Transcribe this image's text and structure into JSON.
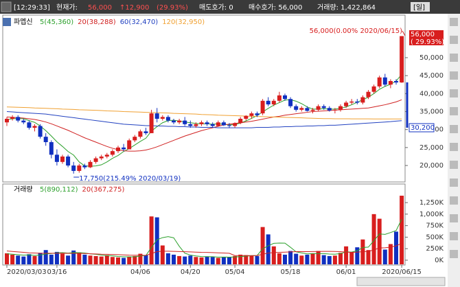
{
  "header": {
    "time": "[12:29:33]",
    "price_label": "현재가:",
    "price": "56,000",
    "change": "↑12,900",
    "change_pct": "(29.93%)",
    "ask": "매도호가: 0",
    "bid": "매수호가: 56,000",
    "volume": "거래량: 1,422,864",
    "period": "[일]"
  },
  "chart_data": [
    {
      "type": "candlestick",
      "title": "파멥신",
      "up_color": "#d81e1e",
      "down_color": "#1030c0",
      "ohlc": [
        [
          32000,
          33500,
          31000,
          33000
        ],
        [
          33000,
          34000,
          32500,
          33500
        ],
        [
          33500,
          34000,
          32000,
          32500
        ],
        [
          32500,
          33000,
          31500,
          32000
        ],
        [
          32000,
          32500,
          30000,
          30500
        ],
        [
          30500,
          31500,
          29500,
          31000
        ],
        [
          31000,
          31500,
          27500,
          28000
        ],
        [
          28000,
          29000,
          25500,
          26500
        ],
        [
          26500,
          27000,
          22000,
          23000
        ],
        [
          23000,
          24500,
          20000,
          21000
        ],
        [
          21000,
          23000,
          20500,
          22500
        ],
        [
          22500,
          23000,
          19500,
          20000
        ],
        [
          20000,
          21000,
          17750,
          18500
        ],
        [
          18500,
          20500,
          18000,
          20000
        ],
        [
          20000,
          20500,
          19000,
          19500
        ],
        [
          19500,
          21500,
          19300,
          21000
        ],
        [
          21000,
          22500,
          20500,
          22000
        ],
        [
          22000,
          23000,
          21500,
          22500
        ],
        [
          22500,
          23500,
          22000,
          23000
        ],
        [
          23000,
          24500,
          22500,
          24000
        ],
        [
          24000,
          25500,
          23500,
          25000
        ],
        [
          25000,
          26000,
          24000,
          24500
        ],
        [
          24500,
          27500,
          24500,
          27000
        ],
        [
          27000,
          28500,
          26500,
          28000
        ],
        [
          28000,
          30000,
          27500,
          29500
        ],
        [
          29500,
          30500,
          28500,
          29000
        ],
        [
          29000,
          35500,
          29000,
          34500
        ],
        [
          34500,
          36000,
          32000,
          33000
        ],
        [
          33000,
          34000,
          32500,
          33500
        ],
        [
          33500,
          34000,
          32000,
          32500
        ],
        [
          32500,
          33000,
          31500,
          32000
        ],
        [
          32000,
          33000,
          31500,
          32500
        ],
        [
          32500,
          33500,
          31000,
          31500
        ],
        [
          31500,
          32500,
          30500,
          31000
        ],
        [
          31000,
          32000,
          30500,
          31500
        ],
        [
          31500,
          32500,
          31000,
          32000
        ],
        [
          32000,
          32500,
          31000,
          31500
        ],
        [
          31500,
          32000,
          30500,
          31000
        ],
        [
          31000,
          32500,
          30800,
          32000
        ],
        [
          32000,
          32500,
          31000,
          31200
        ],
        [
          31200,
          31800,
          30500,
          31000
        ],
        [
          31000,
          32000,
          30500,
          31800
        ],
        [
          31800,
          33500,
          31500,
          33000
        ],
        [
          33000,
          34000,
          32500,
          33800
        ],
        [
          33800,
          35000,
          33000,
          34500
        ],
        [
          34500,
          35000,
          33500,
          34000
        ],
        [
          34500,
          38500,
          34000,
          38000
        ],
        [
          38000,
          39000,
          36500,
          37000
        ],
        [
          37000,
          38500,
          36500,
          38000
        ],
        [
          38000,
          40500,
          37500,
          39500
        ],
        [
          39500,
          40000,
          38000,
          38500
        ],
        [
          38500,
          39000,
          36000,
          36500
        ],
        [
          36500,
          37000,
          35000,
          35500
        ],
        [
          35500,
          36500,
          35000,
          36000
        ],
        [
          36000,
          36500,
          35000,
          35200
        ],
        [
          35200,
          36000,
          34500,
          35500
        ],
        [
          35500,
          37000,
          35000,
          36500
        ],
        [
          36500,
          37000,
          35500,
          36000
        ],
        [
          36000,
          36500,
          35000,
          35300
        ],
        [
          35300,
          36000,
          34500,
          35500
        ],
        [
          35500,
          37000,
          35000,
          36500
        ],
        [
          36500,
          38000,
          36000,
          37500
        ],
        [
          37500,
          38500,
          37000,
          37800
        ],
        [
          37800,
          38500,
          37000,
          37500
        ],
        [
          37500,
          39500,
          37000,
          39000
        ],
        [
          39000,
          41000,
          38500,
          40500
        ],
        [
          40500,
          42500,
          40000,
          42000
        ],
        [
          42000,
          45000,
          41500,
          44500
        ],
        [
          44500,
          45500,
          42000,
          42500
        ],
        [
          42500,
          44000,
          41500,
          43500
        ],
        [
          43500,
          44000,
          42500,
          43100
        ],
        [
          43100,
          56000,
          43000,
          56000
        ]
      ],
      "series": [
        {
          "name": "5(45,360)",
          "color": "#2ca02c",
          "values": [
            32800,
            33000,
            33100,
            33000,
            32500,
            32000,
            31000,
            29700,
            28200,
            26600,
            25300,
            23900,
            22900,
            21000,
            19900,
            19800,
            19900,
            20200,
            21000,
            22000,
            22800,
            23900,
            24700,
            25700,
            26700,
            27600,
            29600,
            30800,
            31900,
            32500,
            32600,
            32400,
            32100,
            31900,
            31700,
            31600,
            31600,
            31500,
            31600,
            31500,
            31300,
            31400,
            31800,
            32400,
            33100,
            33900,
            34900,
            35900,
            36800,
            37500,
            38200,
            38300,
            37900,
            37200,
            36300,
            35700,
            35700,
            35800,
            35700,
            35700,
            35900,
            36300,
            36900,
            37600,
            38300,
            39000,
            40000,
            41200,
            42000,
            42600,
            43500,
            45360
          ]
        },
        {
          "name": "20(38,288)",
          "color": "#d02020",
          "values": [
            33500,
            33400,
            33300,
            33200,
            33000,
            32800,
            32500,
            32100,
            31600,
            31000,
            30400,
            29800,
            29100,
            28400,
            27700,
            27100,
            26500,
            25900,
            25300,
            24800,
            24400,
            24100,
            24000,
            24000,
            24100,
            24300,
            24700,
            25200,
            25800,
            26400,
            27000,
            27600,
            28200,
            28700,
            29200,
            29700,
            30100,
            30500,
            30900,
            31300,
            31500,
            31700,
            31900,
            32100,
            32300,
            32600,
            32900,
            33200,
            33500,
            33700,
            34000,
            34200,
            34400,
            34600,
            34800,
            35000,
            35100,
            35200,
            35300,
            35400,
            35500,
            35600,
            35700,
            35800,
            35900,
            36000,
            36300,
            36600,
            36900,
            37300,
            37700,
            38288
          ]
        },
        {
          "name": "60(32,470)",
          "color": "#2040c0",
          "values": [
            35000,
            34900,
            34800,
            34700,
            34600,
            34500,
            34400,
            34300,
            34100,
            33900,
            33700,
            33500,
            33300,
            33100,
            32900,
            32700,
            32500,
            32300,
            32100,
            31900,
            31700,
            31500,
            31400,
            31300,
            31200,
            31100,
            31100,
            31000,
            31000,
            30900,
            30900,
            30800,
            30800,
            30700,
            30700,
            30600,
            30600,
            30600,
            30500,
            30500,
            30500,
            30500,
            30500,
            30500,
            30500,
            30600,
            30600,
            30600,
            30700,
            30700,
            30800,
            30800,
            30900,
            30900,
            31000,
            31000,
            31100,
            31100,
            31200,
            31200,
            31300,
            31400,
            31500,
            31600,
            31700,
            31800,
            31900,
            32000,
            32100,
            32200,
            32350,
            32470
          ]
        },
        {
          "name": "120(32,950)",
          "color": "#f0a030",
          "values": [
            36300,
            36250,
            36200,
            36150,
            36100,
            36000,
            35950,
            35900,
            35850,
            35800,
            35700,
            35650,
            35600,
            35500,
            35450,
            35400,
            35350,
            35300,
            35200,
            35150,
            35100,
            35000,
            34950,
            34900,
            34850,
            34800,
            34750,
            34700,
            34650,
            34600,
            34500,
            34450,
            34400,
            34350,
            34300,
            34200,
            34150,
            34100,
            34000,
            33950,
            33900,
            33850,
            33800,
            33750,
            33700,
            33650,
            33600,
            33550,
            33500,
            33450,
            33400,
            33350,
            33300,
            33250,
            33200,
            33150,
            33100,
            33050,
            33050,
            33000,
            33000,
            33000,
            32980,
            32980,
            32970,
            32970,
            32960,
            32960,
            32960,
            32950,
            32950,
            32950
          ]
        }
      ],
      "ylim": [
        16000,
        58400
      ],
      "yticks": [
        {
          "value": 20000,
          "label": "20,000"
        },
        {
          "value": 25000,
          "label": "25,000"
        },
        {
          "value": 30000,
          "label": "30,000"
        },
        {
          "value": 35000,
          "label": "35,000"
        },
        {
          "value": 40000,
          "label": "40,000"
        },
        {
          "value": 45000,
          "label": "45,000"
        },
        {
          "value": 50000,
          "label": "50,000"
        }
      ],
      "annotations": [
        "56,000(0.00% 2020/06/15)",
        "17,750(215.49% 2020/03/19)",
        "56,000",
        "( 29.93%)",
        "30,200"
      ]
    },
    {
      "type": "bar",
      "title": "거래량",
      "categories": [
        "2020/03/03",
        null,
        null,
        null,
        null,
        null,
        null,
        null,
        null,
        "03/16",
        null,
        null,
        null,
        null,
        null,
        null,
        null,
        null,
        null,
        null,
        null,
        null,
        null,
        null,
        "04/06",
        null,
        null,
        null,
        null,
        null,
        null,
        null,
        null,
        "04/20",
        null,
        null,
        null,
        null,
        null,
        null,
        null,
        "05/04",
        null,
        null,
        null,
        null,
        null,
        null,
        null,
        null,
        null,
        "05/18",
        null,
        null,
        null,
        null,
        null,
        null,
        null,
        null,
        null,
        "06/01",
        null,
        null,
        null,
        null,
        null,
        null,
        null,
        null,
        null,
        "2020/06/15"
      ],
      "values": [
        150000,
        120000,
        100000,
        80000,
        130000,
        90000,
        160000,
        220000,
        120000,
        180000,
        140000,
        100000,
        210000,
        170000,
        120000,
        100000,
        90000,
        80000,
        110000,
        70000,
        60000,
        50000,
        80000,
        90000,
        140000,
        110000,
        950000,
        930000,
        320000,
        150000,
        120000,
        90000,
        80000,
        100000,
        70000,
        60000,
        80000,
        70000,
        50000,
        60000,
        70000,
        90000,
        120000,
        110000,
        100000,
        90000,
        720000,
        560000,
        300000,
        150000,
        120000,
        200000,
        140000,
        100000,
        120000,
        150000,
        200000,
        110000,
        90000,
        100000,
        160000,
        300000,
        170000,
        280000,
        450000,
        220000,
        1000000,
        900000,
        230000,
        350000,
        620000,
        1400000
      ],
      "series": [
        {
          "name": "5(890,112)",
          "color": "#2ca02c",
          "values": [
            140000,
            130000,
            120000,
            110000,
            116000,
            104000,
            112000,
            136000,
            144000,
            160000,
            164000,
            154000,
            166000,
            164000,
            156000,
            138000,
            128000,
            112000,
            100000,
            94000,
            82000,
            74000,
            74000,
            72000,
            92000,
            104000,
            276000,
            444000,
            490000,
            512000,
            486000,
            302000,
            152000,
            112000,
            92000,
            80000,
            78000,
            76000,
            66000,
            68000,
            66000,
            70000,
            78000,
            88000,
            98000,
            102000,
            248000,
            314000,
            366000,
            372000,
            370000,
            280000,
            182000,
            158000,
            138000,
            142000,
            142000,
            142000,
            134000,
            130000,
            144000,
            180000,
            176000,
            206000,
            276000,
            284000,
            424000,
            570000,
            560000,
            600000,
            644000,
            890112
          ]
        },
        {
          "name": "20(367,275)",
          "color": "#d02020",
          "values": [
            200000,
            190000,
            180000,
            170000,
            160000,
            155000,
            150000,
            150000,
            150000,
            150000,
            150000,
            148000,
            148000,
            148000,
            145000,
            140000,
            135000,
            130000,
            128000,
            125000,
            120000,
            115000,
            110000,
            108000,
            106000,
            105000,
            145000,
            185000,
            195000,
            195000,
            192000,
            188000,
            184000,
            180000,
            175000,
            170000,
            168000,
            165000,
            160000,
            155000,
            150000,
            100000,
            100000,
            100000,
            100000,
            100000,
            130000,
            155000,
            165000,
            170000,
            175000,
            180000,
            185000,
            185000,
            185000,
            188000,
            190000,
            192000,
            192000,
            190000,
            185000,
            175000,
            170000,
            175000,
            185000,
            190000,
            225000,
            265000,
            270000,
            285000,
            310000,
            367275
          ]
        }
      ],
      "ylim": [
        -90000,
        1430000
      ],
      "yticks": [
        {
          "value": 0,
          "label": "0K"
        },
        {
          "value": 250000,
          "label": "250K"
        },
        {
          "value": 500000,
          "label": "500K"
        },
        {
          "value": 750000,
          "label": "750K"
        },
        {
          "value": 1000000,
          "label": "1,000K"
        },
        {
          "value": 1250000,
          "label": "1,250K"
        }
      ]
    }
  ]
}
